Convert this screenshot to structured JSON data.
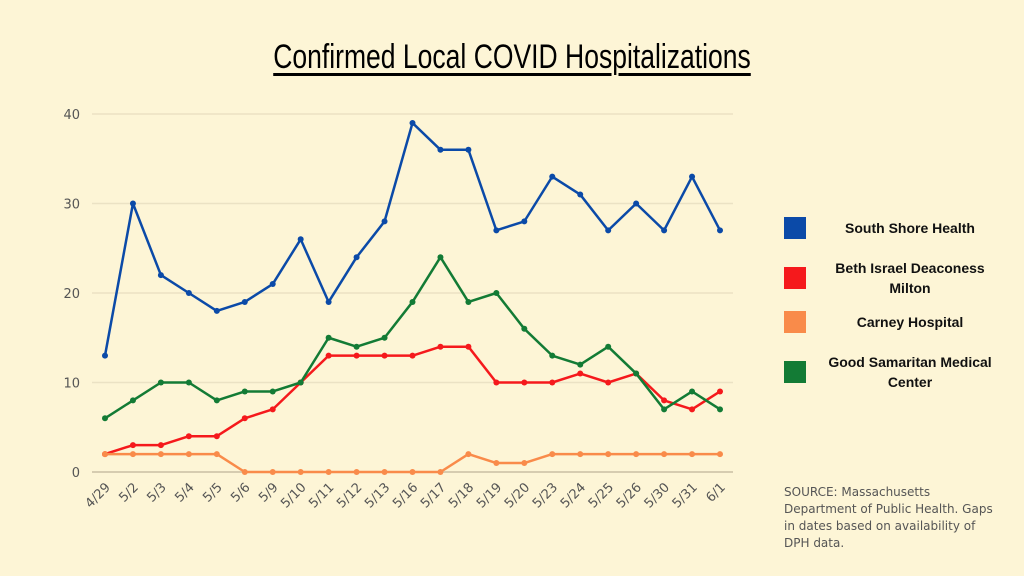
{
  "chart_data": {
    "type": "line",
    "title": "Confirmed Local COVID Hospitalizations",
    "xlabel": "",
    "ylabel": "",
    "ylim": [
      0,
      40
    ],
    "yticks": [
      0,
      10,
      20,
      30,
      40
    ],
    "grid": true,
    "legend_position": "right",
    "categories": [
      "4/29",
      "5/2",
      "5/3",
      "5/4",
      "5/5",
      "5/6",
      "5/9",
      "5/10",
      "5/11",
      "5/12",
      "5/13",
      "5/16",
      "5/17",
      "5/18",
      "5/19",
      "5/20",
      "5/23",
      "5/24",
      "5/25",
      "5/26",
      "5/30",
      "5/31",
      "6/1"
    ],
    "series": [
      {
        "name": "South Shore Health",
        "color": "#0b4aa8",
        "values": [
          13,
          30,
          22,
          20,
          18,
          19,
          21,
          26,
          19,
          24,
          28,
          39,
          36,
          36,
          27,
          28,
          33,
          31,
          27,
          30,
          27,
          33,
          27
        ]
      },
      {
        "name": "Beth Israel Deaconess Milton",
        "color": "#f5191c",
        "values": [
          2,
          3,
          3,
          4,
          4,
          6,
          7,
          10,
          13,
          13,
          13,
          13,
          14,
          14,
          10,
          10,
          10,
          11,
          10,
          11,
          8,
          7,
          9
        ]
      },
      {
        "name": "Carney Hospital",
        "color": "#f98b4a",
        "values": [
          2,
          2,
          2,
          2,
          2,
          0,
          0,
          0,
          0,
          0,
          0,
          0,
          0,
          2,
          1,
          1,
          2,
          2,
          2,
          2,
          2,
          2,
          2
        ]
      },
      {
        "name": "Good Samaritan Medical Center",
        "color": "#137b35",
        "values": [
          6,
          8,
          10,
          10,
          8,
          9,
          9,
          10,
          15,
          14,
          15,
          19,
          24,
          19,
          20,
          16,
          13,
          12,
          14,
          11,
          7,
          9,
          7
        ]
      }
    ]
  },
  "legend": [
    {
      "label": "South Shore Health",
      "color": "#0b4aa8"
    },
    {
      "label": "Beth Israel Deaconess Milton",
      "color": "#f5191c"
    },
    {
      "label": "Carney Hospital",
      "color": "#f98b4a"
    },
    {
      "label": "Good Samaritan Medical Center",
      "color": "#137b35"
    }
  ],
  "source_note": "SOURCE: Massachusetts Department of Public Health. Gaps in dates based on availability of DPH data."
}
